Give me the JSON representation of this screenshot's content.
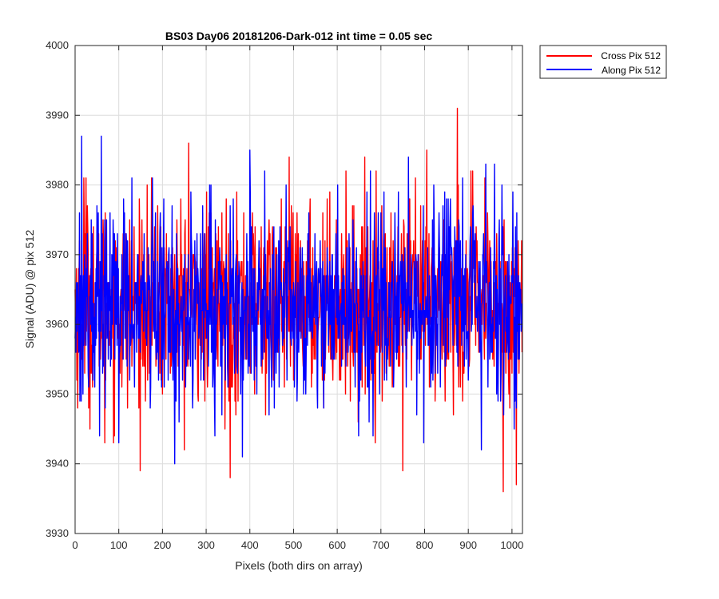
{
  "chart_data": {
    "type": "line",
    "title": "BS03 Day06 20181206-Dark-012 int time = 0.05 sec",
    "xlabel": "Pixels (both dirs on array)",
    "ylabel": "Signal (ADU) @ pix 512",
    "xlim": [
      0,
      1024
    ],
    "ylim": [
      3930,
      4000
    ],
    "xticks": [
      0,
      100,
      200,
      300,
      400,
      500,
      600,
      700,
      800,
      900,
      1000
    ],
    "yticks": [
      3930,
      3940,
      3950,
      3960,
      3970,
      3980,
      3990,
      4000
    ],
    "grid": true,
    "legend_position": "outside-top-right",
    "series": [
      {
        "name": "Cross Pix 512",
        "color": "#ff0000",
        "mean": 3963,
        "std": 7,
        "min": 3936,
        "max": 3991,
        "spikes": [
          [
            20,
            3981
          ],
          [
            25,
            3981
          ],
          [
            260,
            3986
          ],
          [
            355,
            3938
          ],
          [
            875,
            3991
          ],
          [
            980,
            3936
          ],
          [
            1010,
            3937
          ],
          [
            805,
            3985
          ],
          [
            750,
            3939
          ],
          [
            68,
            3943
          ]
        ]
      },
      {
        "name": "Along Pix 512",
        "color": "#0000ff",
        "mean": 3963,
        "std": 7,
        "min": 3940,
        "max": 3987,
        "spikes": [
          [
            15,
            3987
          ],
          [
            60,
            3987
          ],
          [
            228,
            3940
          ],
          [
            400,
            3985
          ],
          [
            100,
            3943
          ],
          [
            940,
            3983
          ],
          [
            960,
            3983
          ],
          [
            930,
            3942
          ],
          [
            320,
            3944
          ]
        ]
      }
    ]
  }
}
